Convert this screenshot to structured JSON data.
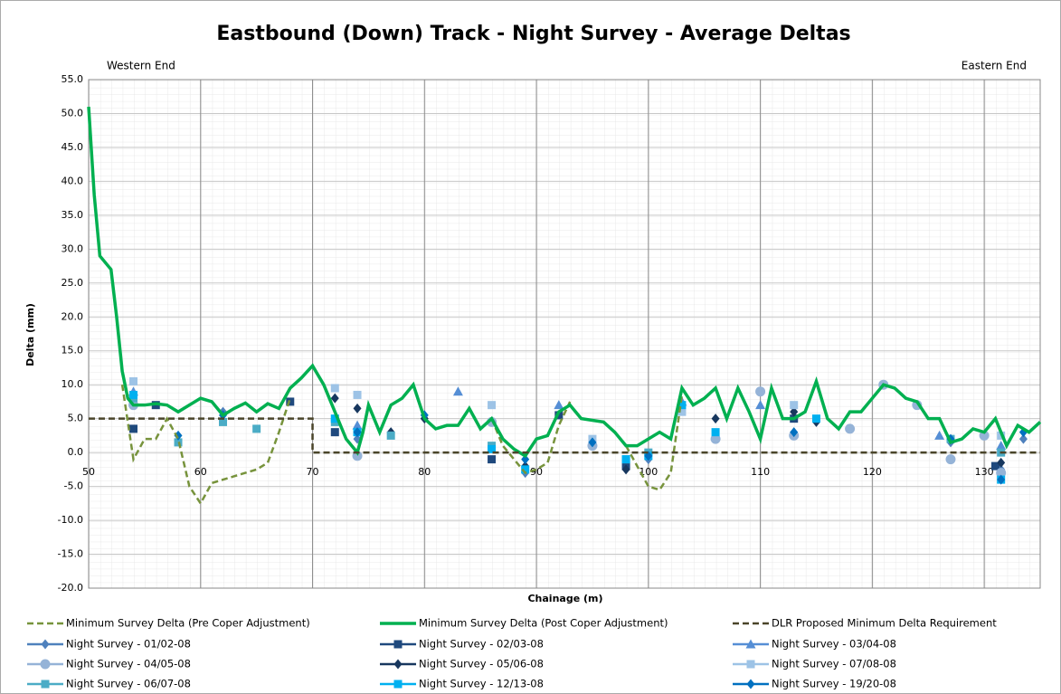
{
  "chart_data": {
    "type": "line",
    "title": "Eastbound (Down) Track - Night Survey - Average Deltas",
    "annotations": [
      "Western End",
      "Eastern End"
    ],
    "x_label": "Chainage (m)",
    "y_label": "Delta (mm)",
    "xlim": [
      50,
      135
    ],
    "ylim": [
      -20,
      55
    ],
    "xticks": [
      50,
      60,
      70,
      80,
      90,
      100,
      110,
      120,
      130
    ],
    "yticks": [
      {
        "value": -20,
        "label": "-20.0"
      },
      {
        "value": -15,
        "label": "-15.0"
      },
      {
        "value": -10,
        "label": "-10.0"
      },
      {
        "value": -5,
        "label": "-5.0"
      },
      {
        "value": 0,
        "label": "0.0"
      },
      {
        "value": 5,
        "label": "5.0"
      },
      {
        "value": 10,
        "label": "10.0"
      },
      {
        "value": 15,
        "label": "15.0"
      },
      {
        "value": 20,
        "label": "20.0"
      },
      {
        "value": 25,
        "label": "25.0"
      },
      {
        "value": 30,
        "label": "30.0"
      },
      {
        "value": 35,
        "label": "35.0"
      },
      {
        "value": 40,
        "label": "40.0"
      },
      {
        "value": 45,
        "label": "45.0"
      },
      {
        "value": 50,
        "label": "50.0"
      },
      {
        "value": 55,
        "label": "55.0"
      }
    ],
    "grid": true,
    "legend": "bottom",
    "series": [
      {
        "name": "Minimum Survey Delta (Pre Coper Adjustment)",
        "type": "line",
        "style": "dashed",
        "color": "#77933c",
        "x": [
          53,
          54,
          55,
          56,
          57,
          58,
          59,
          60,
          61,
          62,
          63,
          64,
          65,
          66,
          67,
          68,
          77,
          86,
          87,
          88,
          89,
          90,
          91,
          92,
          93,
          95,
          98,
          99,
          100,
          101,
          102,
          103
        ],
        "values": [
          10,
          -1,
          2,
          2,
          5,
          2,
          -5,
          -7.5,
          -4.5,
          -4,
          -3.5,
          -3,
          -2.5,
          -1.5,
          3,
          8,
          null,
          5,
          1,
          -1,
          -3,
          -2.5,
          -1.5,
          4,
          7.5,
          null,
          1,
          -2,
          -5,
          -5.5,
          -3,
          8.5
        ]
      },
      {
        "name": "Minimum Survey Delta (Post Coper Adjustment)",
        "type": "line",
        "style": "solid",
        "color": "#00b050",
        "x": [
          50,
          50.5,
          51,
          52,
          52.5,
          53,
          53.5,
          54,
          55,
          56,
          57,
          58,
          59,
          60,
          61,
          62,
          63,
          64,
          65,
          66,
          67,
          68,
          69,
          70,
          71,
          72,
          73,
          74,
          74.5,
          75,
          75.5,
          76,
          77,
          78,
          79,
          80,
          81,
          82,
          83,
          84,
          85,
          86,
          87,
          88,
          89,
          90,
          91,
          92,
          93,
          94,
          96,
          97,
          98,
          99,
          100,
          101,
          102,
          103,
          104,
          105,
          106,
          107,
          108,
          109,
          110,
          111,
          112,
          113,
          114,
          115,
          116,
          117,
          118,
          119,
          120,
          121,
          122,
          123,
          124,
          125,
          126,
          127,
          128,
          129,
          130,
          131,
          132,
          133,
          134,
          135
        ],
        "values": [
          51,
          38,
          29,
          27,
          20,
          12,
          8,
          7,
          7,
          7.2,
          7,
          6,
          7,
          8,
          7.5,
          5.5,
          6.5,
          7.3,
          6,
          7.2,
          6.5,
          9.5,
          11,
          12.8,
          10,
          6,
          2,
          0,
          3,
          7,
          5,
          3,
          7,
          8,
          10,
          5,
          3.5,
          4,
          4,
          6.5,
          3.5,
          5,
          2,
          0.5,
          -0.5,
          2,
          2.5,
          6,
          7,
          5,
          4.5,
          3,
          1,
          1,
          2,
          3,
          2,
          9.5,
          7,
          8,
          9.5,
          5,
          9.5,
          6,
          2,
          9.5,
          5,
          5,
          6,
          10.5,
          5,
          3.5,
          6,
          6,
          8,
          10,
          9.5,
          8,
          7.5,
          5,
          5,
          1.5,
          2,
          3.5,
          3,
          5,
          1,
          4,
          3,
          4.5
        ]
      },
      {
        "name": "DLR Proposed Minimum Delta Requirement",
        "type": "line",
        "style": "dashed",
        "color": "#4a452a",
        "x": [
          50,
          70,
          70,
          135
        ],
        "values": [
          5,
          5,
          0,
          0
        ]
      },
      {
        "name": "Night Survey - 01/02-08",
        "type": "scatter",
        "marker": "diamond",
        "color": "#4f81bd",
        "x": [
          54,
          62,
          74,
          89,
          100,
          110,
          127,
          131.5,
          133.5
        ],
        "values": [
          7.5,
          6,
          2,
          -3,
          -1,
          9,
          1.5,
          -2.5,
          2
        ]
      },
      {
        "name": "Night Survey - 02/03-08",
        "type": "scatter",
        "marker": "square",
        "color": "#1f497d",
        "x": [
          54,
          56,
          68,
          72,
          86,
          92,
          98,
          113,
          131
        ],
        "values": [
          3.5,
          7,
          7.5,
          3,
          -1,
          5.5,
          -2,
          5,
          -2
        ]
      },
      {
        "name": "Night Survey - 03/04-08",
        "type": "scatter",
        "marker": "triangle",
        "color": "#558ed5",
        "x": [
          54,
          74,
          83,
          92,
          103,
          110,
          126,
          131.5
        ],
        "values": [
          9,
          4,
          9,
          7,
          7.5,
          7,
          2.5,
          1
        ]
      },
      {
        "name": "Night Survey - 04/05-08",
        "type": "scatter",
        "marker": "circle",
        "color": "#95b3d7",
        "x": [
          54,
          74,
          86,
          95,
          106,
          110,
          113,
          118,
          121,
          124,
          127,
          130,
          131.5
        ],
        "values": [
          7,
          -0.5,
          4.5,
          1,
          2,
          9,
          2.5,
          3.5,
          10,
          7,
          -1,
          2.5,
          -3
        ]
      },
      {
        "name": "Night Survey - 05/06-08",
        "type": "scatter",
        "marker": "diamond",
        "color": "#17375e",
        "x": [
          72,
          74,
          77,
          80,
          89,
          98,
          106,
          113,
          115,
          131.5
        ],
        "values": [
          8,
          6.5,
          3,
          5,
          -2,
          -2.5,
          5,
          6,
          4.5,
          -1.5
        ]
      },
      {
        "name": "Night Survey - 07/08-08",
        "type": "scatter",
        "marker": "square",
        "color": "#9dc3e6",
        "x": [
          54,
          72,
          74,
          86,
          95,
          103,
          113,
          131.5
        ],
        "values": [
          10.5,
          9.5,
          8.5,
          7,
          2,
          6,
          7,
          2.5
        ]
      },
      {
        "name": "Night Survey - 06/07-08",
        "type": "scatter",
        "marker": "square",
        "color": "#4bacc6",
        "x": [
          54,
          58,
          62,
          65,
          72,
          77,
          86,
          98,
          100,
          127,
          131.5
        ],
        "values": [
          8,
          1.5,
          4.5,
          3.5,
          4.5,
          2.5,
          1,
          -1,
          0,
          2,
          0
        ]
      },
      {
        "name": "Night Survey - 12/13-08",
        "type": "scatter",
        "marker": "square",
        "color": "#00b0f0",
        "x": [
          54,
          72,
          74,
          86,
          89,
          98,
          100,
          103,
          106,
          115,
          131.5
        ],
        "values": [
          8.5,
          5,
          3,
          0.5,
          -2.5,
          -1,
          -0.5,
          7,
          3,
          5,
          -4
        ]
      },
      {
        "name": "Night Survey - 19/20-08",
        "type": "scatter",
        "marker": "diamond",
        "color": "#0070c0",
        "x": [
          58,
          62,
          74,
          80,
          89,
          95,
          100,
          113,
          127,
          131.5,
          133.5
        ],
        "values": [
          2.5,
          5.5,
          3,
          5.5,
          -1,
          1.5,
          -0.5,
          3,
          2,
          -4,
          3
        ]
      }
    ]
  }
}
